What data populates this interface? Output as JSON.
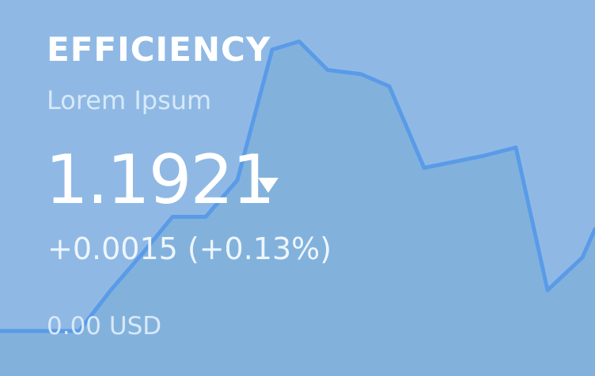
{
  "widget": {
    "title": "EFFICIENCY",
    "subtitle": "Lorem Ipsum",
    "price": "1.1921",
    "change": "+0.0015 (+0.13%)",
    "volume": "0.00 USD",
    "trend_icon": "down-triangle-icon"
  },
  "colors": {
    "background": "#8fb9e4",
    "line": "#5a9be8",
    "area": "#82b2dc",
    "text": "#ffffff"
  },
  "chart_data": {
    "type": "area",
    "x": [
      0,
      1,
      2,
      3,
      4,
      5,
      6,
      7,
      8,
      9,
      10,
      11,
      12,
      13,
      14,
      15,
      16,
      17,
      18,
      19
    ],
    "y": [
      0.0,
      0.0,
      0.0,
      0.2,
      0.38,
      0.56,
      0.56,
      0.74,
      1.38,
      1.42,
      1.28,
      1.26,
      1.2,
      0.8,
      0.86,
      0.9,
      0.2,
      0.36,
      0.5,
      0.48
    ],
    "title": "",
    "xlabel": "",
    "ylabel": "",
    "ylim": [
      0,
      1.6
    ],
    "grid": false,
    "legend": "none"
  }
}
